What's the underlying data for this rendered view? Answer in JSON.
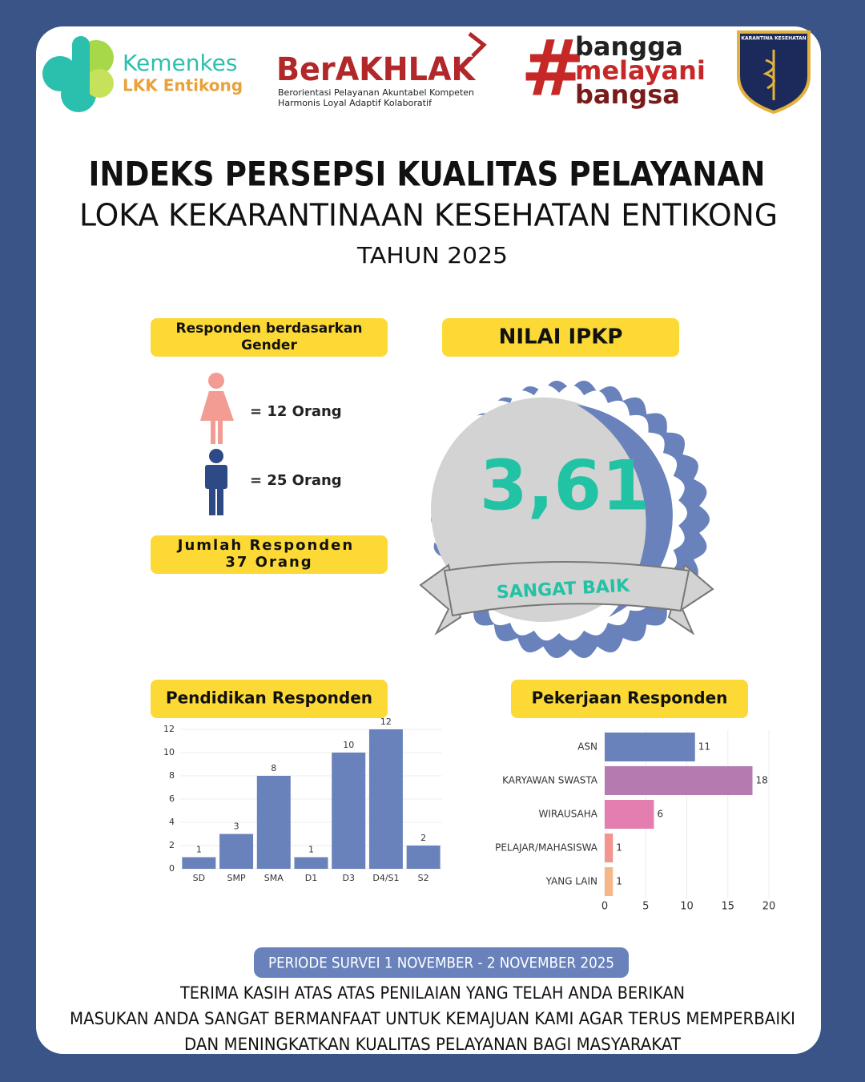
{
  "header": {
    "kemenkes": "Kemenkes",
    "unit": "LKK Entikong",
    "berakhlak": "BerAKHLAK",
    "berakhlak_line1": "Berorientasi Pelayanan Akuntabel Kompeten",
    "berakhlak_line2": "Harmonis Loyal Adaptif Kolaboratif",
    "hashtag": "#",
    "slogan": [
      "bangga",
      "melayani",
      "bangsa"
    ],
    "emblem": "KARANTINA KESEHATAN"
  },
  "title": [
    "INDEKS PERSEPSI KUALITAS PELAYANAN",
    "LOKA KEKARANTINAAN KESEHATAN ENTIKONG",
    "TAHUN 2025"
  ],
  "gender": {
    "heading": [
      "Responden berdasarkan",
      "Gender"
    ],
    "female": "= 12 Orang",
    "male": "= 25 Orang",
    "total": [
      "Jumlah Responden",
      "37 Orang"
    ]
  },
  "ipkp": {
    "heading": "NILAI IPKP",
    "score": "3,61",
    "category": "SANGAT BAIK"
  },
  "chart_data": [
    {
      "type": "bar",
      "title": "Pendidikan Responden",
      "categories": [
        "SD",
        "SMP",
        "SMA",
        "D1",
        "D3",
        "D4/S1",
        "S2"
      ],
      "values": [
        1,
        3,
        8,
        1,
        10,
        12,
        2
      ],
      "color": "#6a82bb",
      "ylim": [
        0,
        12
      ],
      "yticks": [
        0,
        2,
        4,
        6,
        8,
        10,
        12
      ],
      "grid": true
    },
    {
      "type": "barh",
      "title": "Pekerjaan Responden",
      "categories": [
        "ASN",
        "KARYAWAN SWASTA",
        "WIRAUSAHA",
        "PELAJAR/MAHASISWA",
        "YANG LAIN"
      ],
      "values": [
        11,
        18,
        6,
        1,
        1
      ],
      "colors": [
        "#6a82bb",
        "#b57bb0",
        "#e57eb0",
        "#f2958e",
        "#f5b78a"
      ],
      "xlim": [
        0,
        20
      ],
      "xticks": [
        0,
        5,
        10,
        15,
        20
      ],
      "grid": true
    }
  ],
  "footer": {
    "period": "PERIODE SURVEI 1 NOVEMBER - 2 NOVEMBER 2025",
    "lines": [
      "TERIMA KASIH ATAS ATAS PENILAIAN YANG TELAH ANDA BERIKAN",
      "MASUKAN ANDA SANGAT BERMANFAAT UNTUK KEMAJUAN KAMI AGAR TERUS MEMPERBAIKI",
      "DAN MENINGKATKAN KUALITAS PELAYANAN BAGI MASYARAKAT"
    ]
  }
}
